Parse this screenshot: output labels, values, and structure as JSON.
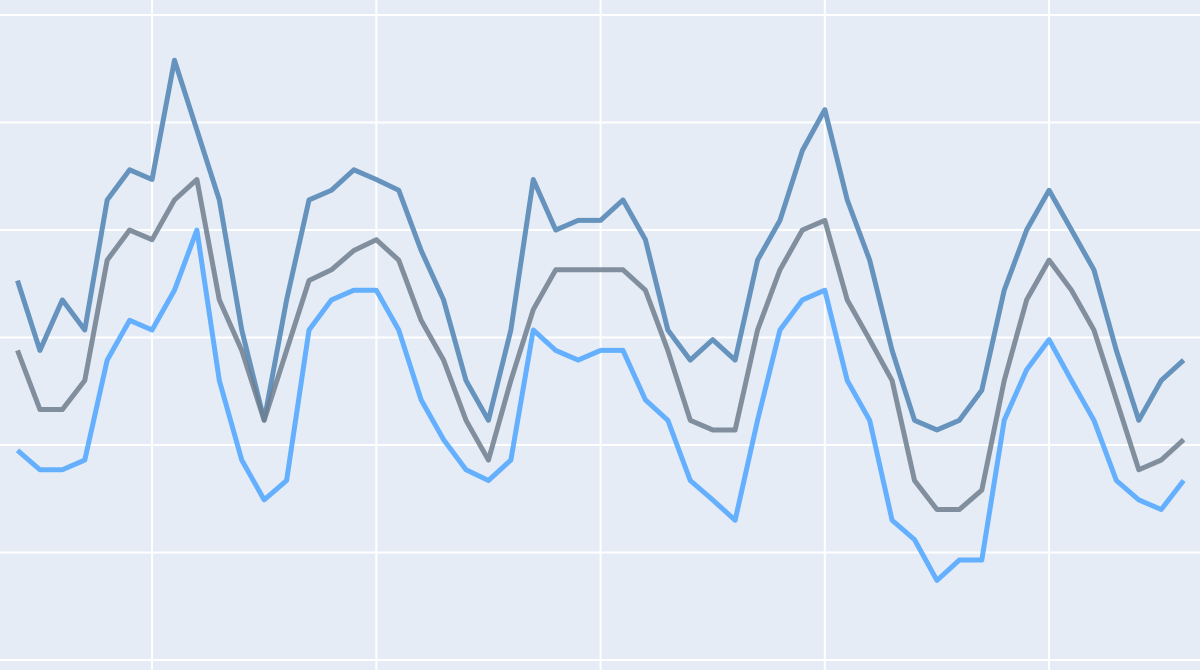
{
  "chart_data": {
    "type": "line",
    "grid": true,
    "background": "#e5ecf6",
    "grid_color": "#ffffff",
    "xlim": [
      0.322,
      5.673
    ],
    "xticks": [
      1,
      2,
      3,
      4,
      5
    ],
    "ylim": [
      -0.093,
      6.14
    ],
    "yticks": [
      0,
      1,
      2,
      3,
      4,
      5,
      6
    ],
    "x": [
      0.4,
      0.5,
      0.6,
      0.7,
      0.8,
      0.9,
      1.0,
      1.1,
      1.2,
      1.3,
      1.4,
      1.5,
      1.6,
      1.7,
      1.8,
      1.9,
      2.0,
      2.1,
      2.2,
      2.3,
      2.4,
      2.5,
      2.6,
      2.7,
      2.8,
      2.9,
      3.0,
      3.1,
      3.2,
      3.3,
      3.4,
      3.5,
      3.6,
      3.7,
      3.8,
      3.9,
      4.0,
      4.1,
      4.2,
      4.3,
      4.4,
      4.5,
      4.6,
      4.7,
      4.8,
      4.9,
      5.0,
      5.1,
      5.2,
      5.3,
      5.4,
      5.5,
      5.6
    ],
    "series": [
      {
        "color": "#4f84b3",
        "values": [
          3.53,
          2.88,
          3.35,
          3.07,
          4.28,
          4.56,
          4.47,
          5.58,
          4.93,
          4.28,
          3.07,
          2.23,
          3.35,
          4.28,
          4.37,
          4.56,
          4.47,
          4.37,
          3.81,
          3.35,
          2.6,
          2.23,
          3.07,
          4.47,
          4.0,
          4.09,
          4.09,
          4.28,
          3.91,
          3.07,
          2.79,
          2.98,
          2.79,
          3.72,
          4.09,
          4.74,
          5.12,
          4.28,
          3.72,
          2.88,
          2.23,
          2.14,
          2.23,
          2.51,
          3.44,
          4.0,
          4.37,
          4.0,
          3.63,
          2.88,
          2.23,
          2.6,
          2.79
        ]
      },
      {
        "color": "#6e7e8e",
        "values": [
          2.88,
          2.33,
          2.33,
          2.6,
          3.72,
          4.0,
          3.91,
          4.28,
          4.47,
          3.35,
          2.88,
          2.23,
          2.88,
          3.53,
          3.63,
          3.81,
          3.91,
          3.72,
          3.16,
          2.79,
          2.23,
          1.86,
          2.6,
          3.26,
          3.63,
          3.63,
          3.63,
          3.63,
          3.44,
          2.88,
          2.23,
          2.14,
          2.14,
          3.07,
          3.63,
          4.0,
          4.09,
          3.35,
          2.98,
          2.6,
          1.67,
          1.4,
          1.4,
          1.58,
          2.6,
          3.35,
          3.72,
          3.44,
          3.07,
          2.42,
          1.77,
          1.86,
          2.05
        ]
      },
      {
        "color": "#4da6ff",
        "values": [
          1.95,
          1.77,
          1.77,
          1.86,
          2.79,
          3.16,
          3.07,
          3.44,
          4.0,
          2.6,
          1.86,
          1.49,
          1.67,
          3.07,
          3.35,
          3.44,
          3.44,
          3.07,
          2.42,
          2.05,
          1.77,
          1.67,
          1.86,
          3.07,
          2.88,
          2.79,
          2.88,
          2.88,
          2.42,
          2.23,
          1.67,
          1.49,
          1.3,
          2.23,
          3.07,
          3.35,
          3.44,
          2.6,
          2.23,
          1.3,
          1.12,
          0.74,
          0.93,
          0.93,
          2.23,
          2.7,
          2.98,
          2.6,
          2.23,
          1.67,
          1.49,
          1.4,
          1.67
        ]
      }
    ]
  }
}
